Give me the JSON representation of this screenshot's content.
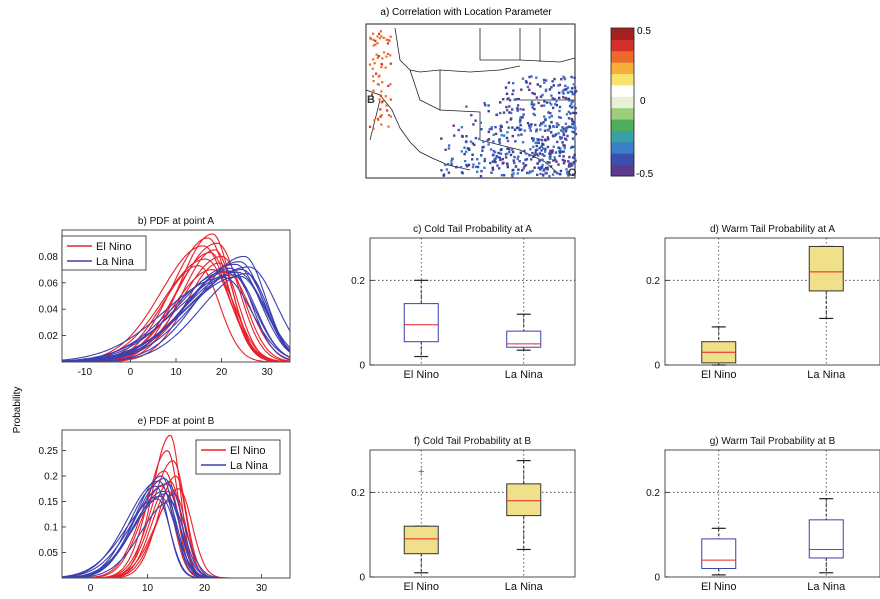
{
  "ylabel_shared": "Probability",
  "colors": {
    "el_nino": "#e8202a",
    "la_nina": "#3b3fb0",
    "box_fill": "#f1e08a",
    "median": "#e8202a"
  },
  "chart_data": [
    {
      "id": "a",
      "type": "heatmap",
      "title": "a) Correlation with Location Parameter",
      "colorbar_ticks": [
        "0.5",
        "0",
        "-0.5"
      ],
      "colorbar_range": [
        -0.5,
        0.5
      ],
      "point_labels": [
        "B",
        "O"
      ]
    },
    {
      "id": "b",
      "type": "line",
      "title": "b) PDF at point A",
      "xlim": [
        -15,
        35
      ],
      "ylim": [
        0,
        0.1
      ],
      "xticks": [
        "-10",
        "0",
        "10",
        "20",
        "30"
      ],
      "yticks": [
        "0.02",
        "0.04",
        "0.06",
        "0.08"
      ],
      "yticks_values": [
        0.02,
        0.04,
        0.06,
        0.08
      ],
      "legend": [
        "El Nino",
        "La Nina"
      ],
      "series": [
        {
          "name": "El Nino",
          "peaks": [
            18,
            17,
            19,
            16,
            18.5,
            17.5,
            20,
            16.5,
            19.5,
            15,
            18,
            21
          ],
          "heights": [
            0.097,
            0.094,
            0.09,
            0.088,
            0.085,
            0.083,
            0.08,
            0.078,
            0.075,
            0.073,
            0.07,
            0.068
          ],
          "sd": 5.5
        },
        {
          "name": "La Nina",
          "peaks": [
            25,
            24,
            23,
            26,
            22,
            24.5,
            21.5,
            23.5,
            25.5,
            22.5,
            24,
            20.5
          ],
          "heights": [
            0.08,
            0.076,
            0.074,
            0.072,
            0.071,
            0.07,
            0.069,
            0.068,
            0.067,
            0.066,
            0.065,
            0.064
          ],
          "sd": 6.5
        }
      ]
    },
    {
      "id": "c",
      "type": "box",
      "title": "c) Cold Tail Probability at A",
      "categories": [
        "El Nino",
        "La Nina"
      ],
      "ylim": [
        0,
        0.3
      ],
      "yticks": [
        "0",
        "0.2"
      ],
      "yticks_values": [
        0,
        0.2
      ],
      "boxes": [
        {
          "name": "El Nino",
          "min": 0.02,
          "q1": 0.055,
          "median": 0.095,
          "q3": 0.145,
          "max": 0.2,
          "filled": false,
          "outliers": []
        },
        {
          "name": "La Nina",
          "min": 0.035,
          "q1": 0.042,
          "median": 0.05,
          "q3": 0.08,
          "max": 0.12,
          "filled": false,
          "outliers": []
        }
      ]
    },
    {
      "id": "d",
      "type": "box",
      "title": "d) Warm Tail Probability at A",
      "categories": [
        "El Nino",
        "La Nina"
      ],
      "ylim": [
        0,
        0.3
      ],
      "yticks": [
        "0",
        "0.2"
      ],
      "yticks_values": [
        0,
        0.2
      ],
      "boxes": [
        {
          "name": "El Nino",
          "min": 0.0,
          "q1": 0.005,
          "median": 0.03,
          "q3": 0.055,
          "max": 0.09,
          "filled": true,
          "outliers": []
        },
        {
          "name": "La Nina",
          "min": 0.11,
          "q1": 0.175,
          "median": 0.22,
          "q3": 0.28,
          "max": 0.28,
          "filled": true,
          "outliers": []
        }
      ]
    },
    {
      "id": "e",
      "type": "line",
      "title": "e) PDF at point B",
      "xlim": [
        -5,
        35
      ],
      "ylim": [
        0,
        0.29
      ],
      "xticks": [
        "0",
        "10",
        "20",
        "30"
      ],
      "yticks": [
        "0.05",
        "0.1",
        "0.15",
        "0.2",
        "0.25"
      ],
      "yticks_values": [
        0.05,
        0.1,
        0.15,
        0.2,
        0.25
      ],
      "legend": [
        "El Nino",
        "La Nina"
      ],
      "series": [
        {
          "name": "El Nino",
          "peaks": [
            14,
            13.5,
            14.5,
            13,
            15,
            14,
            12.5,
            15.5,
            13.8,
            14.8
          ],
          "heights": [
            0.28,
            0.25,
            0.23,
            0.21,
            0.2,
            0.19,
            0.18,
            0.175,
            0.17,
            0.165
          ],
          "sd": 2.4
        },
        {
          "name": "La Nina",
          "peaks": [
            12.5,
            13,
            12,
            13.5,
            11.5,
            12.8,
            13.2,
            12.2,
            11.8,
            14
          ],
          "heights": [
            0.2,
            0.195,
            0.19,
            0.185,
            0.18,
            0.17,
            0.165,
            0.16,
            0.155,
            0.15
          ],
          "sd": 3.0
        }
      ]
    },
    {
      "id": "f",
      "type": "box",
      "title": "f) Cold Tail Probability at B",
      "categories": [
        "El Nino",
        "La Nina"
      ],
      "ylim": [
        0,
        0.3
      ],
      "yticks": [
        "0",
        "0.2"
      ],
      "yticks_values": [
        0,
        0.2
      ],
      "boxes": [
        {
          "name": "El Nino",
          "min": 0.01,
          "q1": 0.055,
          "median": 0.09,
          "q3": 0.12,
          "max": 0.12,
          "filled": true,
          "outliers": [
            0.25
          ]
        },
        {
          "name": "La Nina",
          "min": 0.065,
          "q1": 0.145,
          "median": 0.18,
          "q3": 0.22,
          "max": 0.275,
          "filled": true,
          "outliers": []
        }
      ]
    },
    {
      "id": "g",
      "type": "box",
      "title": "g) Warm Tail Probability at B",
      "categories": [
        "El Nino",
        "La Nina"
      ],
      "ylim": [
        0,
        0.3
      ],
      "yticks": [
        "0",
        "0.2"
      ],
      "yticks_values": [
        0,
        0.2
      ],
      "boxes": [
        {
          "name": "El Nino",
          "min": 0.005,
          "q1": 0.02,
          "median": 0.04,
          "q3": 0.09,
          "max": 0.115,
          "filled": false,
          "outliers": []
        },
        {
          "name": "La Nina",
          "min": 0.01,
          "q1": 0.045,
          "median": 0.065,
          "q3": 0.135,
          "max": 0.185,
          "filled": false,
          "outliers": []
        }
      ]
    }
  ]
}
